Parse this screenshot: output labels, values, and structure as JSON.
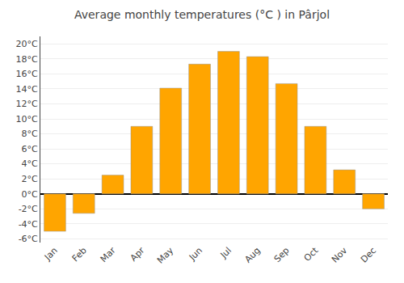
{
  "chart_data": {
    "type": "bar",
    "title": "Average monthly temperatures (°C ) in Pârjol",
    "categories": [
      "Jan",
      "Feb",
      "Mar",
      "Apr",
      "May",
      "Jun",
      "Jul",
      "Aug",
      "Sep",
      "Oct",
      "Nov",
      "Dec"
    ],
    "values": [
      -5.0,
      -2.6,
      2.5,
      9.0,
      14.1,
      17.3,
      19.0,
      18.3,
      14.7,
      9.0,
      3.2,
      -2.0
    ],
    "color": "#FFA500",
    "ylim": [
      -6.5,
      21.0
    ],
    "yticks": [
      {
        "value": -6,
        "label": "-6°C"
      },
      {
        "value": -4,
        "label": "-4°C"
      },
      {
        "value": -2,
        "label": "-2°C"
      },
      {
        "value": 0,
        "label": "0°C"
      },
      {
        "value": 2,
        "label": "2°C"
      },
      {
        "value": 4,
        "label": "4°C"
      },
      {
        "value": 6,
        "label": "6°C"
      },
      {
        "value": 8,
        "label": "8°C"
      },
      {
        "value": 10,
        "label": "10°C"
      },
      {
        "value": 12,
        "label": "12°C"
      },
      {
        "value": 14,
        "label": "14°C"
      },
      {
        "value": 16,
        "label": "16°C"
      },
      {
        "value": 18,
        "label": "18°C"
      },
      {
        "value": 20,
        "label": "20°C"
      }
    ],
    "grid": true
  }
}
